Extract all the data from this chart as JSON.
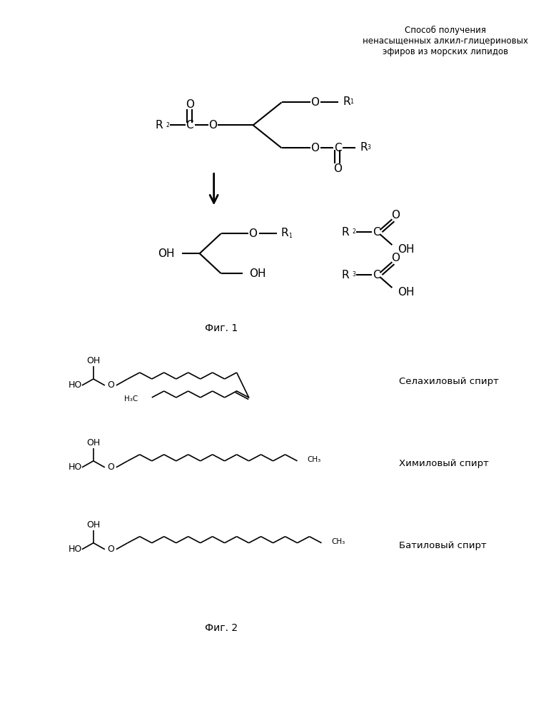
{
  "title_lines": [
    "Способ получения",
    "ненасыщенных алкил-глицериновых",
    "эфиров из морских липидов"
  ],
  "fig1_label": "Фиг. 1",
  "fig2_label": "Фиг. 2",
  "compound1_label": "Селахиловый спирт",
  "compound2_label": "Химиловый спирт",
  "compound3_label": "Батиловый спирт",
  "bg_color": "#ffffff",
  "text_color": "#000000",
  "line_color": "#000000"
}
